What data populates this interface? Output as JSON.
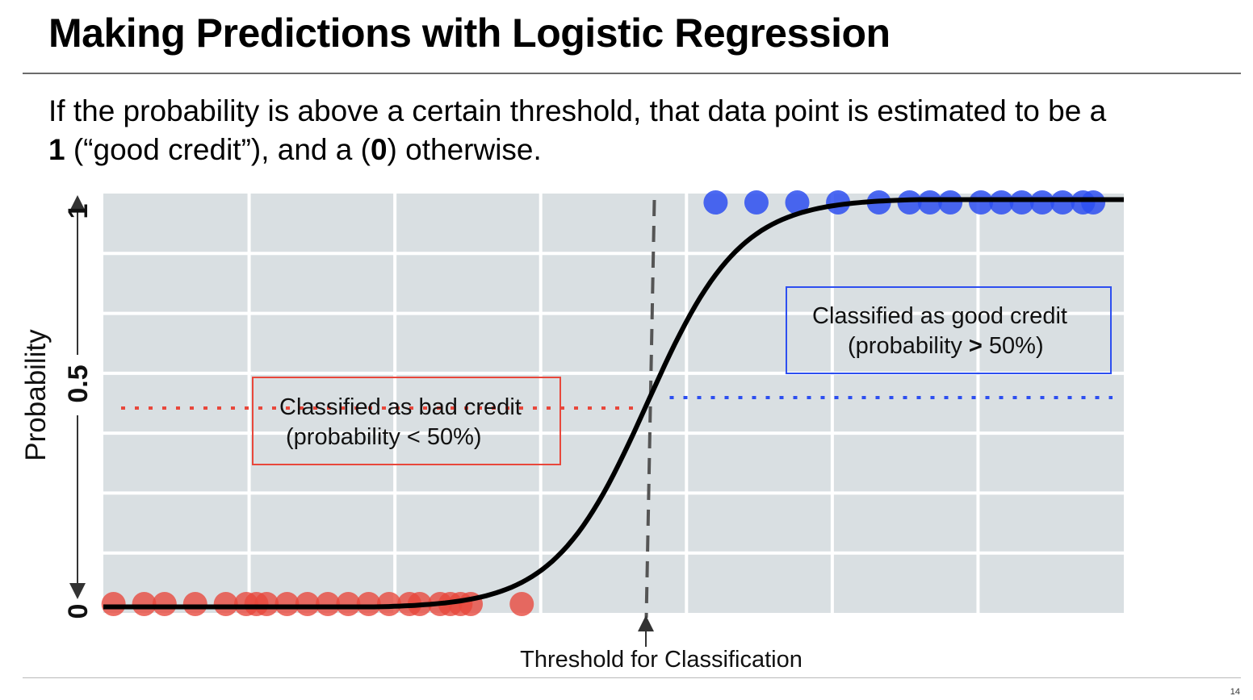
{
  "slide": {
    "title": "Making Predictions with Logistic Regression",
    "body_line1": "If the probability is above a certain threshold, that data point is estimated to be a",
    "body_one": "1",
    "body_mid": " (“good credit”), and a (",
    "body_zero": "0",
    "body_end": ") otherwise.",
    "page_number": "14"
  },
  "chart_data": {
    "type": "scatter",
    "ylabel": "Probability",
    "ylim": [
      0,
      1
    ],
    "y_ticks": [
      "0",
      "0.5",
      "1"
    ],
    "threshold_value": 0.5,
    "grid": true,
    "colors": {
      "background": "#d9dfe2",
      "bad": "#e8473b",
      "good": "#2d4ff0",
      "curve": "#000000",
      "threshold": "#555555"
    },
    "annotations": {
      "bad_line1": "Classified as bad credit",
      "bad_line2": "(probability < 50%)",
      "good_line1": "Classified as good credit",
      "good_line2_a": "(probability ",
      "good_line2_b": ">",
      "good_line2_c": " 50%)",
      "threshold_label": "Threshold for Classification"
    },
    "series": [
      {
        "name": "bad credit",
        "y": 0,
        "color": "#e8473b",
        "x": [
          0.01,
          0.04,
          0.06,
          0.09,
          0.12,
          0.14,
          0.15,
          0.16,
          0.18,
          0.2,
          0.22,
          0.24,
          0.26,
          0.28,
          0.3,
          0.31,
          0.33,
          0.34,
          0.35,
          0.36,
          0.41
        ]
      },
      {
        "name": "good credit",
        "y": 1,
        "color": "#2d4ff0",
        "x": [
          0.6,
          0.64,
          0.68,
          0.72,
          0.76,
          0.79,
          0.81,
          0.83,
          0.86,
          0.88,
          0.9,
          0.92,
          0.94,
          0.96,
          0.97
        ]
      }
    ]
  }
}
